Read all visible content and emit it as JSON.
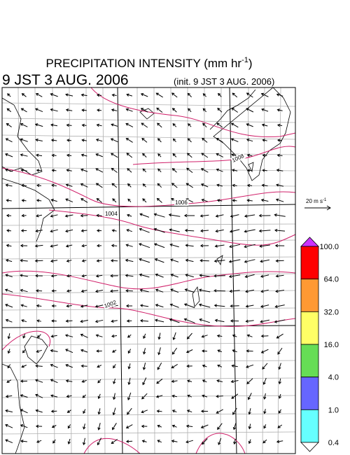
{
  "header": {
    "title": "PRECIPITATION INTENSITY (mm hr",
    "title_exponent": "-1",
    "title_close": ")",
    "valid_time": "9 JST 3 AUG. 2006",
    "init_time": "(init. 9 JST 3 AUG. 2006)"
  },
  "reference_vector": {
    "label": "20 m s",
    "label_exponent": "-1"
  },
  "colorbar": {
    "labels": [
      "100.0",
      "64.0",
      "32.0",
      "16.0",
      "4.0",
      "1.0",
      "0.4"
    ],
    "colors": [
      "#cc33ff",
      "#ff0000",
      "#ff9933",
      "#ffff66",
      "#66dd55",
      "#6666ff",
      "#66ffff",
      "#ffffff"
    ]
  },
  "isobars": {
    "labels": [
      "1008",
      "1006",
      "1004",
      "1002"
    ]
  }
}
